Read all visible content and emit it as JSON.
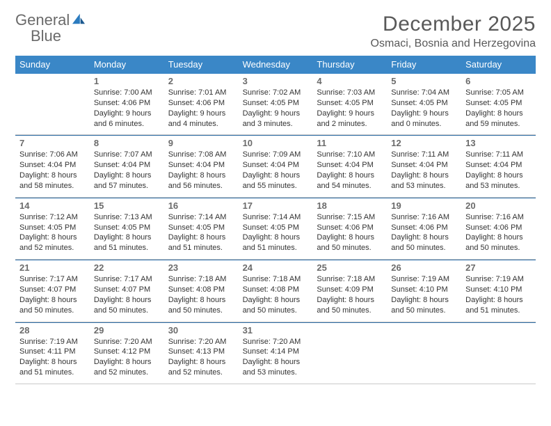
{
  "brand": {
    "name1": "General",
    "name2": "Blue"
  },
  "title": "December 2025",
  "location": "Osmaci, Bosnia and Herzegovina",
  "colors": {
    "header_bg": "#3a87c7",
    "header_text": "#ffffff",
    "rule": "#2f6fa8",
    "text": "#333333",
    "muted": "#6b6b6b",
    "title": "#595959"
  },
  "dow": [
    "Sunday",
    "Monday",
    "Tuesday",
    "Wednesday",
    "Thursday",
    "Friday",
    "Saturday"
  ],
  "weeks": [
    [
      null,
      {
        "n": "1",
        "sr": "7:00 AM",
        "ss": "4:06 PM",
        "dl": "9 hours and 6 minutes."
      },
      {
        "n": "2",
        "sr": "7:01 AM",
        "ss": "4:06 PM",
        "dl": "9 hours and 4 minutes."
      },
      {
        "n": "3",
        "sr": "7:02 AM",
        "ss": "4:05 PM",
        "dl": "9 hours and 3 minutes."
      },
      {
        "n": "4",
        "sr": "7:03 AM",
        "ss": "4:05 PM",
        "dl": "9 hours and 2 minutes."
      },
      {
        "n": "5",
        "sr": "7:04 AM",
        "ss": "4:05 PM",
        "dl": "9 hours and 0 minutes."
      },
      {
        "n": "6",
        "sr": "7:05 AM",
        "ss": "4:05 PM",
        "dl": "8 hours and 59 minutes."
      }
    ],
    [
      {
        "n": "7",
        "sr": "7:06 AM",
        "ss": "4:04 PM",
        "dl": "8 hours and 58 minutes."
      },
      {
        "n": "8",
        "sr": "7:07 AM",
        "ss": "4:04 PM",
        "dl": "8 hours and 57 minutes."
      },
      {
        "n": "9",
        "sr": "7:08 AM",
        "ss": "4:04 PM",
        "dl": "8 hours and 56 minutes."
      },
      {
        "n": "10",
        "sr": "7:09 AM",
        "ss": "4:04 PM",
        "dl": "8 hours and 55 minutes."
      },
      {
        "n": "11",
        "sr": "7:10 AM",
        "ss": "4:04 PM",
        "dl": "8 hours and 54 minutes."
      },
      {
        "n": "12",
        "sr": "7:11 AM",
        "ss": "4:04 PM",
        "dl": "8 hours and 53 minutes."
      },
      {
        "n": "13",
        "sr": "7:11 AM",
        "ss": "4:04 PM",
        "dl": "8 hours and 53 minutes."
      }
    ],
    [
      {
        "n": "14",
        "sr": "7:12 AM",
        "ss": "4:05 PM",
        "dl": "8 hours and 52 minutes."
      },
      {
        "n": "15",
        "sr": "7:13 AM",
        "ss": "4:05 PM",
        "dl": "8 hours and 51 minutes."
      },
      {
        "n": "16",
        "sr": "7:14 AM",
        "ss": "4:05 PM",
        "dl": "8 hours and 51 minutes."
      },
      {
        "n": "17",
        "sr": "7:14 AM",
        "ss": "4:05 PM",
        "dl": "8 hours and 51 minutes."
      },
      {
        "n": "18",
        "sr": "7:15 AM",
        "ss": "4:06 PM",
        "dl": "8 hours and 50 minutes."
      },
      {
        "n": "19",
        "sr": "7:16 AM",
        "ss": "4:06 PM",
        "dl": "8 hours and 50 minutes."
      },
      {
        "n": "20",
        "sr": "7:16 AM",
        "ss": "4:06 PM",
        "dl": "8 hours and 50 minutes."
      }
    ],
    [
      {
        "n": "21",
        "sr": "7:17 AM",
        "ss": "4:07 PM",
        "dl": "8 hours and 50 minutes."
      },
      {
        "n": "22",
        "sr": "7:17 AM",
        "ss": "4:07 PM",
        "dl": "8 hours and 50 minutes."
      },
      {
        "n": "23",
        "sr": "7:18 AM",
        "ss": "4:08 PM",
        "dl": "8 hours and 50 minutes."
      },
      {
        "n": "24",
        "sr": "7:18 AM",
        "ss": "4:08 PM",
        "dl": "8 hours and 50 minutes."
      },
      {
        "n": "25",
        "sr": "7:18 AM",
        "ss": "4:09 PM",
        "dl": "8 hours and 50 minutes."
      },
      {
        "n": "26",
        "sr": "7:19 AM",
        "ss": "4:10 PM",
        "dl": "8 hours and 50 minutes."
      },
      {
        "n": "27",
        "sr": "7:19 AM",
        "ss": "4:10 PM",
        "dl": "8 hours and 51 minutes."
      }
    ],
    [
      {
        "n": "28",
        "sr": "7:19 AM",
        "ss": "4:11 PM",
        "dl": "8 hours and 51 minutes."
      },
      {
        "n": "29",
        "sr": "7:20 AM",
        "ss": "4:12 PM",
        "dl": "8 hours and 52 minutes."
      },
      {
        "n": "30",
        "sr": "7:20 AM",
        "ss": "4:13 PM",
        "dl": "8 hours and 52 minutes."
      },
      {
        "n": "31",
        "sr": "7:20 AM",
        "ss": "4:14 PM",
        "dl": "8 hours and 53 minutes."
      },
      null,
      null,
      null
    ]
  ],
  "labels": {
    "sunrise": "Sunrise:",
    "sunset": "Sunset:",
    "daylight": "Daylight:"
  }
}
